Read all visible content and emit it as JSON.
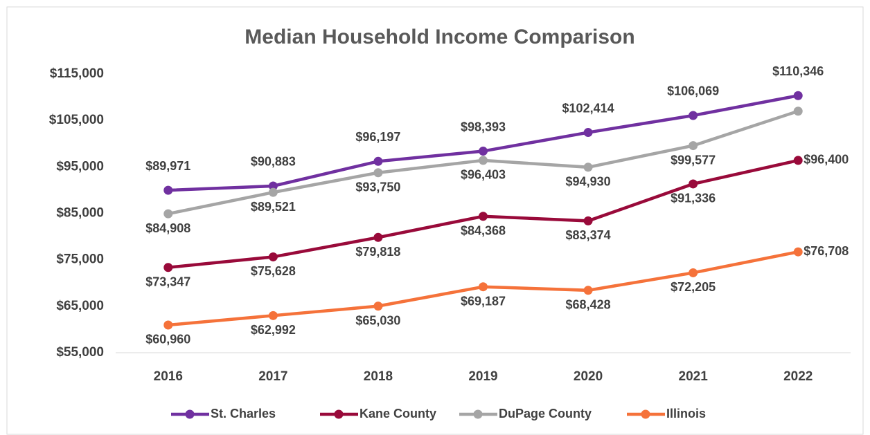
{
  "chart_data": {
    "type": "line",
    "title": "Median Household Income Comparison",
    "categories": [
      "2016",
      "2017",
      "2018",
      "2019",
      "2020",
      "2021",
      "2022"
    ],
    "series": [
      {
        "name": "St. Charles",
        "color": "#7030a0",
        "values": [
          89971,
          90883,
          96197,
          98393,
          102414,
          106069,
          110346
        ],
        "value_labels": [
          "$89,971",
          "$90,883",
          "$96,197",
          "$98,393",
          "$102,414",
          "$106,069",
          "$110,346"
        ]
      },
      {
        "name": "Kane County",
        "color": "#990a3a",
        "values": [
          73347,
          75628,
          79818,
          84368,
          83374,
          91336,
          96400
        ],
        "value_labels": [
          "$73,347",
          "$75,628",
          "$79,818",
          "$84,368",
          "$83,374",
          "$91,336",
          "$96,400"
        ]
      },
      {
        "name": "DuPage County",
        "color": "#a5a5a5",
        "values": [
          84908,
          89521,
          93750,
          96403,
          94930,
          99577,
          107000
        ],
        "value_labels": [
          "$84,908",
          "$89,521",
          "$93,750",
          "$96,403",
          "$94,930",
          "$99,577",
          null
        ]
      },
      {
        "name": "Illinois",
        "color": "#f5723a",
        "values": [
          60960,
          62992,
          65030,
          69187,
          68428,
          72205,
          76708
        ],
        "value_labels": [
          "$60,960",
          "$62,992",
          "$65,030",
          "$69,187",
          "$68,428",
          "$72,205",
          "$76,708"
        ]
      }
    ],
    "ylim": [
      55000,
      115000
    ],
    "yticks": [
      {
        "value": 55000,
        "label": "$55,000"
      },
      {
        "value": 65000,
        "label": "$65,000"
      },
      {
        "value": 75000,
        "label": "$75,000"
      },
      {
        "value": 85000,
        "label": "$85,000"
      },
      {
        "value": 95000,
        "label": "$95,000"
      },
      {
        "value": 105000,
        "label": "$105,000"
      },
      {
        "value": 115000,
        "label": "$115,000"
      }
    ],
    "grid": false,
    "legend": "bottom"
  }
}
